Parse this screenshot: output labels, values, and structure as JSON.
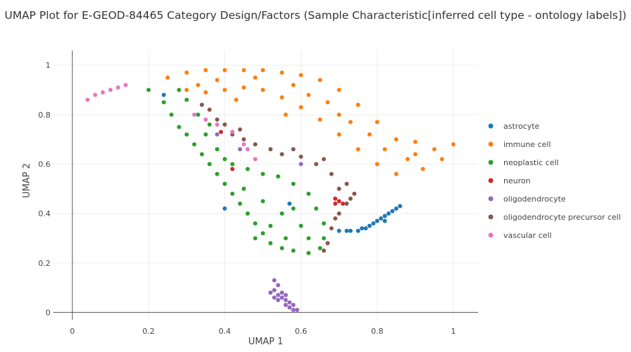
{
  "chart_data": {
    "type": "scatter",
    "title": "UMAP Plot for E-GEOD-84465 Category Design/Factors (Sample Characteristic[inferred cell type - ontology labels])",
    "xlabel": "UMAP 1",
    "ylabel": "UMAP 2",
    "xlim": [
      -0.05,
      1.065
    ],
    "ylim": [
      -0.03,
      1.06
    ],
    "xticks": [
      "0",
      "0.2",
      "0.4",
      "0.6",
      "0.8",
      "1"
    ],
    "yticks": [
      "0",
      "0.2",
      "0.4",
      "0.6",
      "0.8",
      "1"
    ],
    "grid": true,
    "legend_position": "right",
    "series": [
      {
        "name": "astrocyte",
        "color": "#1f77b4",
        "points": [
          [
            0.73,
            0.33
          ],
          [
            0.75,
            0.33
          ],
          [
            0.76,
            0.34
          ],
          [
            0.77,
            0.34
          ],
          [
            0.78,
            0.35
          ],
          [
            0.79,
            0.36
          ],
          [
            0.8,
            0.37
          ],
          [
            0.81,
            0.38
          ],
          [
            0.82,
            0.39
          ],
          [
            0.83,
            0.4
          ],
          [
            0.84,
            0.41
          ],
          [
            0.85,
            0.42
          ],
          [
            0.86,
            0.43
          ],
          [
            0.7,
            0.33
          ],
          [
            0.72,
            0.33
          ],
          [
            0.82,
            0.37
          ],
          [
            0.4,
            0.42
          ],
          [
            0.24,
            0.88
          ],
          [
            0.57,
            0.44
          ]
        ]
      },
      {
        "name": "immune cell",
        "color": "#ff7f0e",
        "points": [
          [
            0.25,
            0.95
          ],
          [
            0.3,
            0.97
          ],
          [
            0.35,
            0.98
          ],
          [
            0.4,
            0.98
          ],
          [
            0.45,
            0.98
          ],
          [
            0.5,
            0.98
          ],
          [
            0.55,
            0.97
          ],
          [
            0.6,
            0.96
          ],
          [
            0.65,
            0.94
          ],
          [
            0.7,
            0.9
          ],
          [
            0.75,
            0.84
          ],
          [
            0.8,
            0.77
          ],
          [
            0.85,
            0.7
          ],
          [
            0.9,
            0.64
          ],
          [
            0.95,
            0.66
          ],
          [
            1.0,
            0.68
          ],
          [
            0.92,
            0.58
          ],
          [
            0.85,
            0.56
          ],
          [
            0.8,
            0.6
          ],
          [
            0.75,
            0.66
          ],
          [
            0.7,
            0.72
          ],
          [
            0.65,
            0.78
          ],
          [
            0.6,
            0.83
          ],
          [
            0.55,
            0.87
          ],
          [
            0.5,
            0.9
          ],
          [
            0.45,
            0.91
          ],
          [
            0.4,
            0.9
          ],
          [
            0.35,
            0.89
          ],
          [
            0.3,
            0.9
          ],
          [
            0.62,
            0.88
          ],
          [
            0.7,
            0.8
          ],
          [
            0.78,
            0.72
          ],
          [
            0.88,
            0.62
          ],
          [
            0.58,
            0.92
          ],
          [
            0.48,
            0.95
          ],
          [
            0.82,
            0.66
          ],
          [
            0.73,
            0.77
          ],
          [
            0.67,
            0.85
          ],
          [
            0.43,
            0.86
          ],
          [
            0.56,
            0.8
          ],
          [
            0.9,
            0.69
          ],
          [
            0.97,
            0.62
          ],
          [
            0.38,
            0.94
          ],
          [
            0.33,
            0.92
          ]
        ]
      },
      {
        "name": "neoplastic cell",
        "color": "#2ca02c",
        "points": [
          [
            0.2,
            0.9
          ],
          [
            0.24,
            0.85
          ],
          [
            0.26,
            0.8
          ],
          [
            0.28,
            0.75
          ],
          [
            0.3,
            0.72
          ],
          [
            0.32,
            0.68
          ],
          [
            0.34,
            0.64
          ],
          [
            0.36,
            0.6
          ],
          [
            0.38,
            0.56
          ],
          [
            0.4,
            0.52
          ],
          [
            0.42,
            0.48
          ],
          [
            0.44,
            0.44
          ],
          [
            0.46,
            0.4
          ],
          [
            0.48,
            0.36
          ],
          [
            0.5,
            0.32
          ],
          [
            0.52,
            0.28
          ],
          [
            0.55,
            0.26
          ],
          [
            0.58,
            0.25
          ],
          [
            0.62,
            0.24
          ],
          [
            0.65,
            0.26
          ],
          [
            0.66,
            0.3
          ],
          [
            0.66,
            0.36
          ],
          [
            0.64,
            0.42
          ],
          [
            0.62,
            0.48
          ],
          [
            0.58,
            0.52
          ],
          [
            0.54,
            0.55
          ],
          [
            0.5,
            0.56
          ],
          [
            0.46,
            0.58
          ],
          [
            0.42,
            0.6
          ],
          [
            0.38,
            0.66
          ],
          [
            0.35,
            0.72
          ],
          [
            0.33,
            0.8
          ],
          [
            0.3,
            0.86
          ],
          [
            0.28,
            0.9
          ],
          [
            0.5,
            0.45
          ],
          [
            0.55,
            0.4
          ],
          [
            0.6,
            0.35
          ],
          [
            0.45,
            0.5
          ],
          [
            0.52,
            0.35
          ],
          [
            0.58,
            0.42
          ],
          [
            0.4,
            0.62
          ],
          [
            0.36,
            0.76
          ],
          [
            0.48,
            0.3
          ],
          [
            0.56,
            0.3
          ],
          [
            0.62,
            0.3
          ]
        ]
      },
      {
        "name": "neuron",
        "color": "#d62728",
        "points": [
          [
            0.69,
            0.46
          ],
          [
            0.7,
            0.45
          ],
          [
            0.71,
            0.44
          ],
          [
            0.69,
            0.44
          ],
          [
            0.39,
            0.73
          ],
          [
            0.42,
            0.58
          ]
        ]
      },
      {
        "name": "oligodendrocyte",
        "color": "#9467bd",
        "points": [
          [
            0.53,
            0.13
          ],
          [
            0.54,
            0.11
          ],
          [
            0.53,
            0.09
          ],
          [
            0.54,
            0.07
          ],
          [
            0.55,
            0.06
          ],
          [
            0.56,
            0.05
          ],
          [
            0.57,
            0.04
          ],
          [
            0.58,
            0.03
          ],
          [
            0.59,
            0.01
          ],
          [
            0.56,
            0.03
          ],
          [
            0.54,
            0.05
          ],
          [
            0.53,
            0.06
          ],
          [
            0.57,
            0.02
          ],
          [
            0.58,
            0.01
          ],
          [
            0.55,
            0.08
          ],
          [
            0.52,
            0.08
          ],
          [
            0.56,
            0.07
          ],
          [
            0.38,
            0.72
          ],
          [
            0.6,
            0.6
          ],
          [
            0.44,
            0.66
          ]
        ]
      },
      {
        "name": "oligodendrocyte precursor cell",
        "color": "#8c564b",
        "points": [
          [
            0.36,
            0.82
          ],
          [
            0.38,
            0.78
          ],
          [
            0.4,
            0.76
          ],
          [
            0.42,
            0.72
          ],
          [
            0.45,
            0.7
          ],
          [
            0.48,
            0.68
          ],
          [
            0.52,
            0.66
          ],
          [
            0.55,
            0.64
          ],
          [
            0.6,
            0.63
          ],
          [
            0.64,
            0.6
          ],
          [
            0.68,
            0.56
          ],
          [
            0.72,
            0.52
          ],
          [
            0.74,
            0.48
          ],
          [
            0.72,
            0.44
          ],
          [
            0.7,
            0.4
          ],
          [
            0.68,
            0.34
          ],
          [
            0.67,
            0.28
          ],
          [
            0.66,
            0.25
          ],
          [
            0.69,
            0.38
          ],
          [
            0.73,
            0.46
          ],
          [
            0.34,
            0.84
          ],
          [
            0.44,
            0.74
          ],
          [
            0.58,
            0.66
          ],
          [
            0.66,
            0.62
          ],
          [
            0.7,
            0.5
          ]
        ]
      },
      {
        "name": "vascular cell",
        "color": "#e377c2",
        "points": [
          [
            0.04,
            0.86
          ],
          [
            0.06,
            0.88
          ],
          [
            0.08,
            0.89
          ],
          [
            0.1,
            0.9
          ],
          [
            0.12,
            0.91
          ],
          [
            0.14,
            0.92
          ],
          [
            0.35,
            0.78
          ],
          [
            0.38,
            0.76
          ],
          [
            0.42,
            0.73
          ],
          [
            0.45,
            0.68
          ],
          [
            0.32,
            0.8
          ],
          [
            0.48,
            0.62
          ],
          [
            0.46,
            0.66
          ]
        ]
      }
    ]
  }
}
